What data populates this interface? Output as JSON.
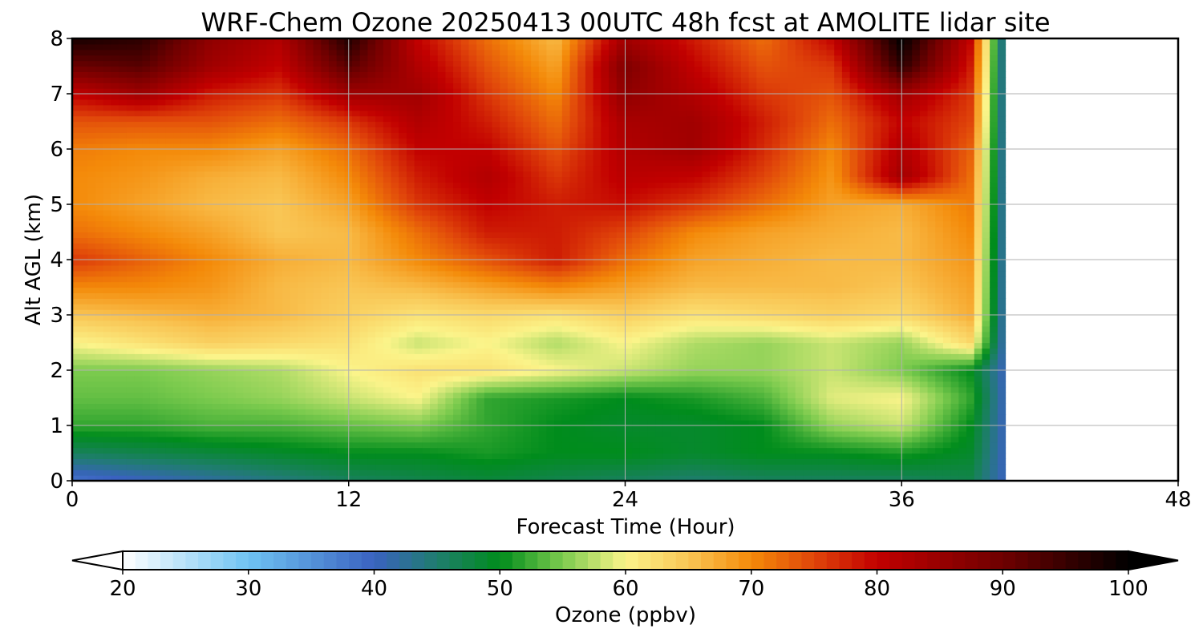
{
  "chart_data": {
    "type": "heatmap",
    "title": "WRF-Chem Ozone  20250413 00UTC 48h fcst at AMOLITE lidar site",
    "xlabel": "Forecast Time (Hour)",
    "ylabel": "Alt AGL (km)",
    "xlim": [
      0,
      48
    ],
    "ylim": [
      0,
      8
    ],
    "xticks": [
      0,
      12,
      24,
      36,
      48
    ],
    "yticks": [
      0,
      1,
      2,
      3,
      4,
      5,
      6,
      7,
      8
    ],
    "grid": true,
    "data_available_until_hour": 40.5,
    "colorbar": {
      "label": "Ozone  (ppbv)",
      "min": 20,
      "max": 100,
      "ticks": [
        20,
        30,
        40,
        50,
        60,
        70,
        80,
        90,
        100
      ],
      "extend": "both",
      "orientation": "horizontal",
      "placement": "bottom",
      "stops": [
        {
          "value": 20,
          "color": "#ffffff"
        },
        {
          "value": 30,
          "color": "#6fc3f2"
        },
        {
          "value": 40,
          "color": "#3a62c0"
        },
        {
          "value": 45,
          "color": "#1f7d6e"
        },
        {
          "value": 50,
          "color": "#008c1c"
        },
        {
          "value": 55,
          "color": "#7ccb4e"
        },
        {
          "value": 60,
          "color": "#fbf48a"
        },
        {
          "value": 65,
          "color": "#f9c655"
        },
        {
          "value": 70,
          "color": "#f48a09"
        },
        {
          "value": 75,
          "color": "#e0450a"
        },
        {
          "value": 80,
          "color": "#c20000"
        },
        {
          "value": 90,
          "color": "#6e0000"
        },
        {
          "value": 100,
          "color": "#000000"
        }
      ]
    },
    "x_hours": [
      0,
      3,
      6,
      9,
      12,
      15,
      18,
      21,
      24,
      27,
      30,
      33,
      36,
      39,
      40.5
    ],
    "y_km": [
      0,
      0.5,
      1,
      1.5,
      2,
      2.5,
      3,
      3.5,
      4,
      4.5,
      5,
      5.5,
      6,
      6.5,
      7,
      7.5,
      8
    ],
    "z_ppbv": [
      [
        38,
        40,
        42,
        44,
        46,
        47,
        48,
        47,
        46,
        45,
        46,
        46,
        46,
        47,
        40
      ],
      [
        46,
        47,
        48,
        49,
        50,
        50,
        51,
        50,
        50,
        49,
        50,
        50,
        51,
        49,
        40
      ],
      [
        52,
        52,
        53,
        53,
        54,
        55,
        52,
        50,
        49,
        49,
        50,
        56,
        58,
        50,
        40
      ],
      [
        54,
        54,
        55,
        56,
        58,
        60,
        52,
        51,
        50,
        51,
        53,
        59,
        60,
        52,
        40
      ],
      [
        55,
        55,
        56,
        57,
        60,
        62,
        62,
        60,
        58,
        56,
        56,
        58,
        55,
        50,
        40
      ],
      [
        60,
        62,
        64,
        63,
        62,
        58,
        60,
        57,
        60,
        57,
        56,
        58,
        56,
        63,
        40
      ],
      [
        65,
        66,
        67,
        66,
        64,
        62,
        63,
        62,
        64,
        62,
        63,
        64,
        63,
        67,
        40
      ],
      [
        70,
        70,
        69,
        66,
        65,
        66,
        68,
        70,
        68,
        66,
        66,
        66,
        65,
        68,
        40
      ],
      [
        76,
        73,
        70,
        67,
        66,
        70,
        74,
        78,
        72,
        68,
        67,
        66,
        66,
        69,
        40
      ],
      [
        72,
        70,
        68,
        65,
        66,
        72,
        78,
        78,
        75,
        70,
        68,
        67,
        66,
        70,
        40
      ],
      [
        70,
        68,
        66,
        65,
        68,
        76,
        80,
        78,
        79,
        76,
        72,
        68,
        67,
        71,
        40
      ],
      [
        70,
        69,
        67,
        66,
        70,
        78,
        82,
        76,
        81,
        80,
        75,
        69,
        84,
        72,
        40
      ],
      [
        71,
        70,
        70,
        68,
        72,
        80,
        80,
        74,
        82,
        84,
        77,
        70,
        82,
        73,
        40
      ],
      [
        74,
        74,
        74,
        72,
        76,
        82,
        78,
        72,
        83,
        84,
        78,
        72,
        80,
        75,
        40
      ],
      [
        80,
        84,
        78,
        76,
        84,
        84,
        76,
        70,
        86,
        82,
        76,
        74,
        84,
        76,
        40
      ],
      [
        90,
        92,
        84,
        80,
        92,
        82,
        74,
        68,
        88,
        80,
        74,
        76,
        96,
        78,
        40
      ],
      [
        98,
        96,
        86,
        82,
        97,
        80,
        72,
        66,
        84,
        78,
        72,
        80,
        100,
        80,
        40
      ]
    ]
  }
}
